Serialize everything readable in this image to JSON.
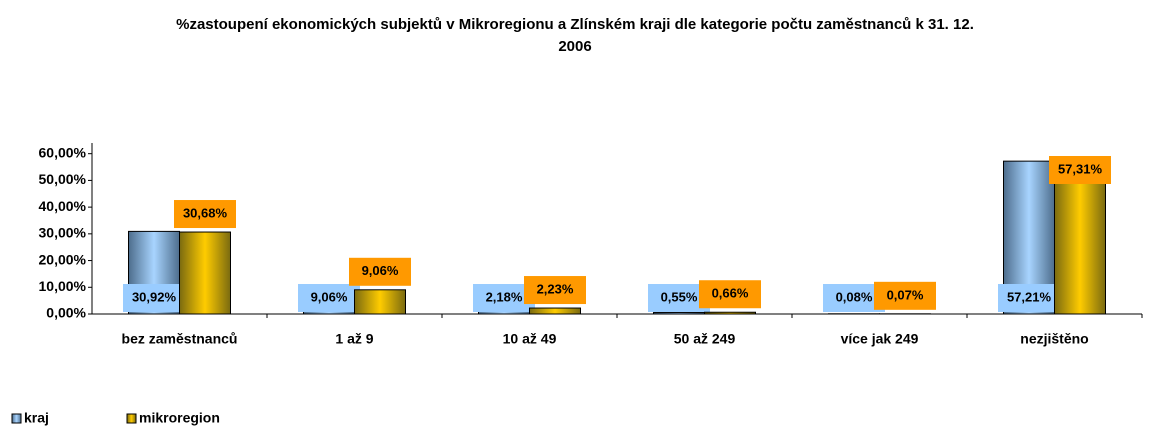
{
  "chart_data": {
    "type": "bar",
    "title": "%zastoupení ekonomických subjektů v Mikroregionu a Zlínském kraji dle kategorie počtu zaměstnanců k 31. 12. 2006",
    "categories": [
      "bez zaměstnanců",
      "1 až 9",
      "10 až 49",
      "50 až 249",
      "více jak 249",
      "nezjištěno"
    ],
    "series": [
      {
        "name": "kraj",
        "color": "#99ccff",
        "values": [
          30.92,
          9.06,
          2.18,
          0.55,
          0.08,
          57.21
        ],
        "value_labels": [
          "30,92%",
          "9,06%",
          "2,18%",
          "0,55%",
          "0,08%",
          "57,21%"
        ]
      },
      {
        "name": "mikroregion",
        "color": "#ff9900",
        "values": [
          30.68,
          9.06,
          2.23,
          0.66,
          0.07,
          57.31
        ],
        "value_labels": [
          "30,68%",
          "9,06%",
          "2,23%",
          "0,66%",
          "0,07%",
          "57,31%"
        ]
      }
    ],
    "ylim": [
      0,
      64
    ],
    "yticks": [
      {
        "value": 0,
        "label": "0,00%"
      },
      {
        "value": 10,
        "label": "10,00%"
      },
      {
        "value": 20,
        "label": "20,00%"
      },
      {
        "value": 30,
        "label": "30,00%"
      },
      {
        "value": 40,
        "label": "40,00%"
      },
      {
        "value": 50,
        "label": "50,00%"
      },
      {
        "value": 60,
        "label": "60,00%"
      }
    ],
    "legend": "bottom-left"
  }
}
